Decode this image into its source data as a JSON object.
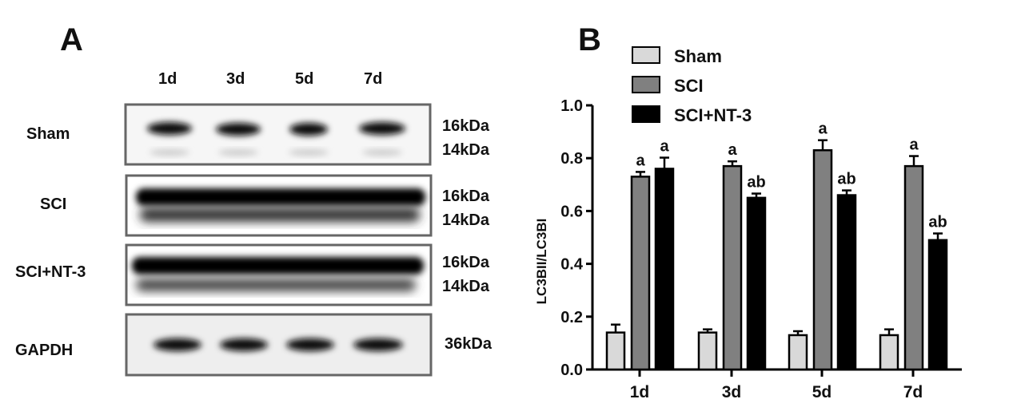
{
  "panel_a": {
    "label": "A",
    "lanes": [
      "1d",
      "3d",
      "5d",
      "7d"
    ],
    "rows": [
      {
        "name": "Sham",
        "markers": [
          "16kDa",
          "14kDa"
        ]
      },
      {
        "name": "SCI",
        "markers": [
          "16kDa",
          "14kDa"
        ]
      },
      {
        "name": "SCI+NT-3",
        "markers": [
          "16kDa",
          "14kDa"
        ]
      },
      {
        "name": "GAPDH",
        "markers": [
          "36kDa"
        ]
      }
    ]
  },
  "panel_b": {
    "label": "B"
  },
  "chart_data": {
    "type": "bar",
    "categories": [
      "1d",
      "3d",
      "5d",
      "7d"
    ],
    "ylabel": "LC3BII/LC3BI",
    "ylim": [
      0,
      1.0
    ],
    "yticks": [
      "0.0",
      "0.2",
      "0.4",
      "0.6",
      "0.8",
      "1.0"
    ],
    "legend_position": "top-left",
    "series": [
      {
        "name": "Sham",
        "color": "#d9d9d9",
        "values": [
          0.14,
          0.14,
          0.13,
          0.13
        ],
        "errors": [
          0.03,
          0.012,
          0.015,
          0.022
        ],
        "annotations": [
          "",
          "",
          "",
          ""
        ]
      },
      {
        "name": "SCI",
        "color": "#808080",
        "values": [
          0.73,
          0.77,
          0.83,
          0.77
        ],
        "errors": [
          0.018,
          0.018,
          0.038,
          0.038
        ],
        "annotations": [
          "a",
          "a",
          "a",
          "a"
        ]
      },
      {
        "name": "SCI+NT-3",
        "color": "#000000",
        "values": [
          0.76,
          0.65,
          0.66,
          0.49
        ],
        "errors": [
          0.042,
          0.016,
          0.018,
          0.025
        ],
        "annotations": [
          "a",
          "ab",
          "ab",
          "ab"
        ]
      }
    ]
  }
}
